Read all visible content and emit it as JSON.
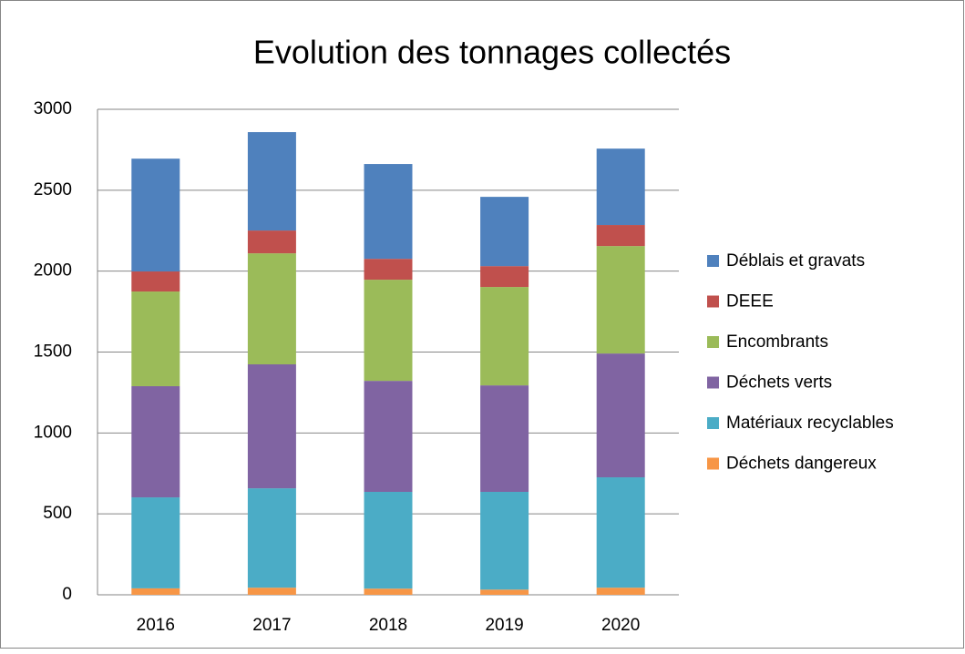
{
  "chart_data": {
    "type": "stacked_bar",
    "title": "Evolution des tonnages collectés",
    "categories": [
      "2016",
      "2017",
      "2018",
      "2019",
      "2020"
    ],
    "series": [
      {
        "name": "Déchets dangereux",
        "color": "#f79646",
        "values": [
          40,
          44,
          38,
          32,
          44
        ]
      },
      {
        "name": "Matériaux recyclables",
        "color": "#4bacc6",
        "values": [
          562,
          614,
          598,
          604,
          682
        ]
      },
      {
        "name": "Déchets verts",
        "color": "#8064a2",
        "values": [
          687,
          766,
          686,
          658,
          765
        ]
      },
      {
        "name": "Encombrants",
        "color": "#9bbb59",
        "values": [
          585,
          686,
          625,
          608,
          664
        ]
      },
      {
        "name": "DEEE",
        "color": "#c0504d",
        "values": [
          124,
          141,
          129,
          129,
          130
        ]
      },
      {
        "name": "Déblais et gravats",
        "color": "#4f81bd",
        "values": [
          697,
          608,
          586,
          428,
          472
        ]
      }
    ],
    "ylim": [
      0,
      3000
    ],
    "yticks": [
      0,
      500,
      1000,
      1500,
      2000,
      2500,
      3000
    ],
    "grid": true,
    "legend": "right"
  }
}
